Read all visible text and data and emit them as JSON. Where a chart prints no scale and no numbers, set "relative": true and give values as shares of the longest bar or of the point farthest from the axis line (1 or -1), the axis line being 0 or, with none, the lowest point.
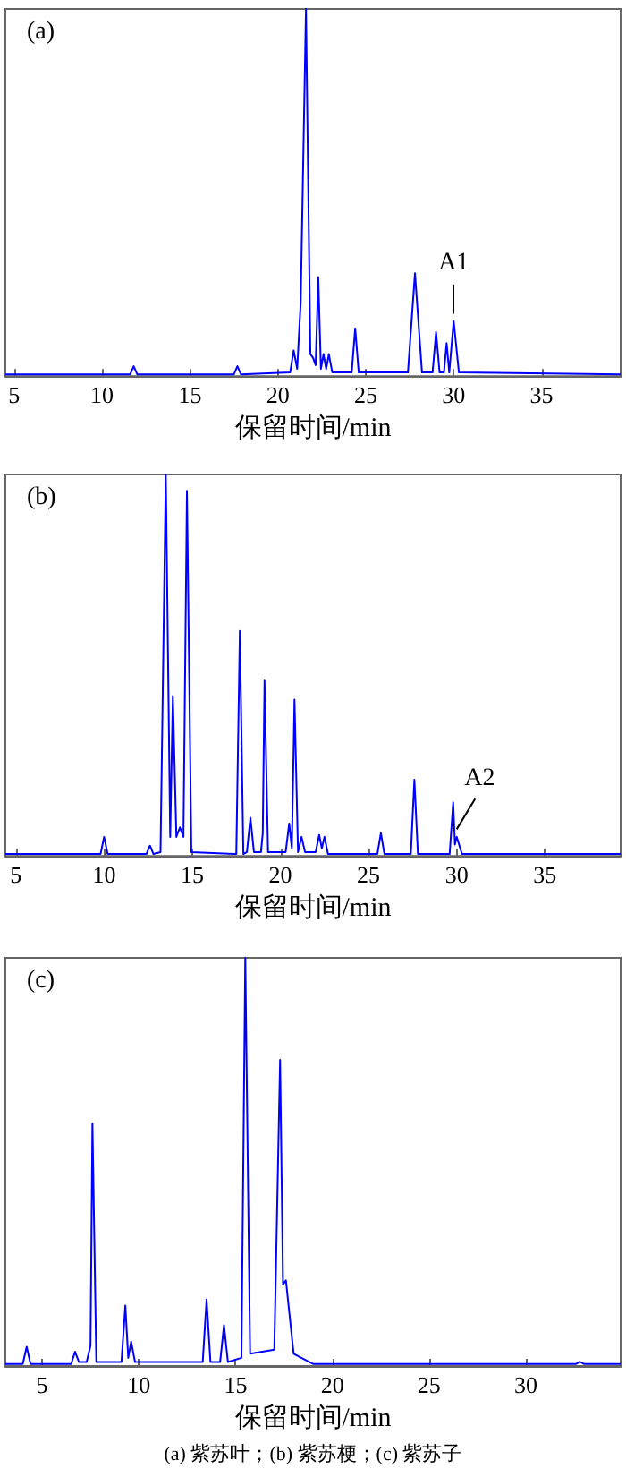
{
  "chart_data": [
    {
      "type": "line",
      "title": "(a)",
      "xlabel": "保留时间/min",
      "relative": true,
      "xlim": [
        4.5,
        39.5
      ],
      "xticks": [
        5,
        10,
        15,
        20,
        25,
        30,
        35
      ],
      "tick_labels": "x",
      "grid": false,
      "marker": "none",
      "line_style": "solid",
      "annotations": [
        {
          "text": "A1",
          "x": 30.0,
          "y": 0.15
        }
      ],
      "series": [
        {
          "color": "#0000ff",
          "x": [
            4.5,
            11.6,
            11.8,
            12,
            17.5,
            17.7,
            17.9,
            20.7,
            20.9,
            21.1,
            21.3,
            21.6,
            21.85,
            22.0,
            22.15,
            22.3,
            22.45,
            22.6,
            22.75,
            22.9,
            23.1,
            24.2,
            24.4,
            24.6,
            27.4,
            27.8,
            28.2,
            28.8,
            29.0,
            29.2,
            29.45,
            29.6,
            29.75,
            30.0,
            30.3,
            39.5
          ],
          "values": [
            0.005,
            0.005,
            0.027,
            0.005,
            0.005,
            0.027,
            0.005,
            0.01,
            0.07,
            0.02,
            0.2,
            1.0,
            0.06,
            0.05,
            0.03,
            0.27,
            0.02,
            0.06,
            0.02,
            0.06,
            0.01,
            0.01,
            0.13,
            0.01,
            0.01,
            0.28,
            0.01,
            0.01,
            0.12,
            0.01,
            0.01,
            0.09,
            0.01,
            0.15,
            0.01,
            0.005
          ]
        }
      ]
    },
    {
      "type": "line",
      "title": "(b)",
      "xlabel": "保留时间/min",
      "relative": true,
      "xlim": [
        4.4,
        39.3
      ],
      "xticks": [
        5,
        10,
        15,
        20,
        25,
        30,
        35
      ],
      "tick_labels": "x",
      "grid": false,
      "marker": "none",
      "line_style": "solid",
      "annotations": [
        {
          "text": "A2",
          "x": 30.0,
          "y": 0.05
        }
      ],
      "series": [
        {
          "color": "#0000ff",
          "x": [
            4.4,
            9.8,
            10.0,
            10.2,
            12.4,
            12.6,
            12.8,
            13.2,
            13.5,
            13.75,
            13.9,
            14.1,
            14.3,
            14.5,
            14.7,
            14.95,
            17.5,
            17.7,
            17.9,
            18.1,
            18.3,
            18.5,
            18.9,
            19.0,
            19.1,
            19.3,
            20.3,
            20.5,
            20.65,
            20.8,
            21.0,
            21.2,
            21.4,
            22.0,
            22.2,
            22.35,
            22.5,
            22.7,
            25.5,
            25.7,
            25.9,
            27.4,
            27.6,
            27.8,
            29.6,
            29.8,
            29.9,
            30.0,
            30.3,
            39.3
          ],
          "values": [
            0.005,
            0.005,
            0.05,
            0.005,
            0.005,
            0.027,
            0.005,
            0.01,
            1.0,
            0.05,
            0.42,
            0.05,
            0.075,
            0.05,
            0.957,
            0.01,
            0.005,
            0.59,
            0.005,
            0.01,
            0.1,
            0.01,
            0.01,
            0.06,
            0.46,
            0.01,
            0.01,
            0.085,
            0.02,
            0.41,
            0.01,
            0.05,
            0.01,
            0.01,
            0.055,
            0.02,
            0.05,
            0.005,
            0.005,
            0.06,
            0.005,
            0.005,
            0.2,
            0.005,
            0.005,
            0.14,
            0.03,
            0.05,
            0.005,
            0.005
          ]
        }
      ]
    },
    {
      "type": "line",
      "title": "(c)",
      "xlabel": "保留时间/min",
      "relative": true,
      "xlim": [
        3.1,
        34.9
      ],
      "xticks": [
        5,
        10,
        15,
        20,
        25,
        30
      ],
      "tick_labels": "x",
      "grid": false,
      "marker": "none",
      "line_style": "solid",
      "annotations": [
        "(a) 紫苏叶；(b) 紫苏梗；(c) 紫苏子"
      ],
      "series": [
        {
          "color": "#0000ff",
          "x": [
            3.1,
            4.0,
            4.2,
            4.4,
            6.5,
            6.7,
            6.9,
            7.3,
            7.5,
            7.6,
            7.8,
            9.1,
            9.3,
            9.45,
            9.6,
            9.8,
            13.3,
            13.5,
            13.7,
            14.2,
            14.4,
            14.6,
            15.3,
            15.5,
            15.75,
            17.0,
            17.3,
            17.45,
            17.6,
            18.0,
            19.0,
            32.6,
            32.8,
            33.0,
            34.9
          ],
          "values": [
            0.005,
            0.005,
            0.047,
            0.005,
            0.005,
            0.035,
            0.01,
            0.01,
            0.05,
            0.595,
            0.01,
            0.01,
            0.148,
            0.02,
            0.06,
            0.01,
            0.01,
            0.163,
            0.01,
            0.01,
            0.1,
            0.01,
            0.02,
            1.0,
            0.03,
            0.04,
            0.75,
            0.2,
            0.21,
            0.03,
            0.005,
            0.005,
            0.01,
            0.005,
            0.005
          ]
        }
      ]
    }
  ]
}
